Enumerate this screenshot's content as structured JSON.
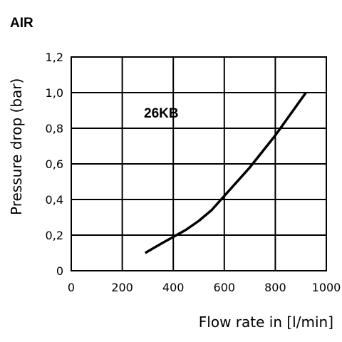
{
  "chart_data": {
    "type": "line",
    "title": "AIR",
    "xlabel": "Flow rate in [l/min]",
    "ylabel": "Pressure drop (bar)",
    "xlim": [
      0,
      1000
    ],
    "ylim": [
      0,
      1.2
    ],
    "x_ticks": [
      0,
      200,
      400,
      600,
      800,
      1000
    ],
    "x_tick_labels": [
      "0",
      "200",
      "400",
      "600",
      "800",
      "1000"
    ],
    "y_ticks": [
      0,
      0.2,
      0.4,
      0.6,
      0.8,
      1.0,
      1.2
    ],
    "y_tick_labels": [
      "0",
      "0,2",
      "0,4",
      "0,6",
      "0,8",
      "1,0",
      "1,2"
    ],
    "grid": true,
    "annotation": "26KB",
    "series": [
      {
        "x": [
          290,
          350,
          400,
          450,
          500,
          550,
          600,
          650,
          700,
          750,
          800,
          850,
          900,
          920
        ],
        "y": [
          0.1,
          0.15,
          0.19,
          0.23,
          0.28,
          0.34,
          0.42,
          0.5,
          0.58,
          0.67,
          0.76,
          0.86,
          0.96,
          1.0
        ]
      }
    ]
  }
}
